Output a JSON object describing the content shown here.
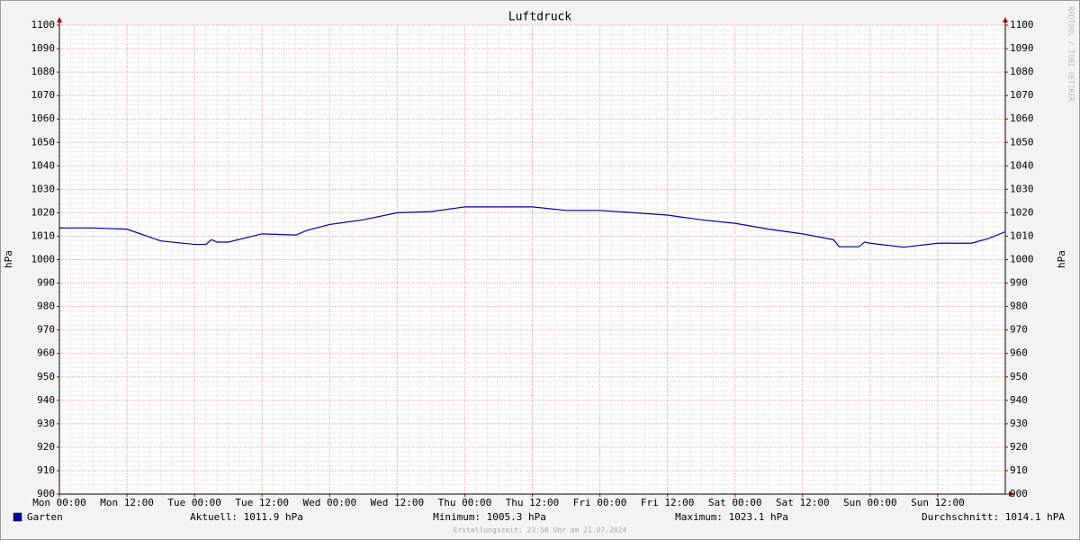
{
  "chart_data": {
    "type": "line",
    "title": "Luftdruck",
    "y_label": "hPa",
    "y2_label": "hPa",
    "watermark": "RRDTOOL / TOBI OETIKER",
    "footer": "Erstellungszeit: 23:58 Uhr am 21.07.2024",
    "x": [
      0,
      6,
      12,
      18,
      24,
      26,
      27,
      28,
      30,
      36,
      42,
      44,
      48,
      54,
      60,
      66,
      72,
      78,
      84,
      90,
      96,
      102,
      108,
      114,
      120,
      126,
      132,
      137.5,
      138.5,
      142,
      143,
      144,
      150,
      156,
      162,
      165,
      168
    ],
    "series": [
      {
        "name": "Garten",
        "color": "#0000a0",
        "values": [
          1013.5,
          1013.5,
          1013,
          1008,
          1006.5,
          1006.5,
          1008.5,
          1007.5,
          1007.5,
          1011,
          1010.5,
          1012.5,
          1015,
          1017,
          1020,
          1020.5,
          1022.5,
          1022.5,
          1022.5,
          1021,
          1021,
          1020,
          1019,
          1017,
          1015.5,
          1013,
          1011,
          1008.5,
          1005.5,
          1005.5,
          1007.5,
          1007,
          1005.3,
          1007,
          1007,
          1009,
          1011.9
        ]
      }
    ],
    "legend_stats": [
      "Aktuell: 1011.9 hPa",
      "Minimum: 1005.3 hPa",
      "Maximum: 1023.1 hPa",
      "Durchschnitt: 1014.1 hPA"
    ],
    "xlim": [
      0,
      168
    ],
    "xticks": [
      {
        "value": 0,
        "label": "Mon 00:00"
      },
      {
        "value": 12,
        "label": "Mon 12:00"
      },
      {
        "value": 24,
        "label": "Tue 00:00"
      },
      {
        "value": 36,
        "label": "Tue 12:00"
      },
      {
        "value": 48,
        "label": "Wed 00:00"
      },
      {
        "value": 60,
        "label": "Wed 12:00"
      },
      {
        "value": 72,
        "label": "Thu 00:00"
      },
      {
        "value": 84,
        "label": "Thu 12:00"
      },
      {
        "value": 96,
        "label": "Fri 00:00"
      },
      {
        "value": 108,
        "label": "Fri 12:00"
      },
      {
        "value": 120,
        "label": "Sat 00:00"
      },
      {
        "value": 132,
        "label": "Sat 12:00"
      },
      {
        "value": 144,
        "label": "Sun 00:00"
      },
      {
        "value": 156,
        "label": "Sun 12:00"
      }
    ],
    "ylim": [
      900,
      1100
    ],
    "yticks": [
      900,
      910,
      920,
      930,
      940,
      950,
      960,
      970,
      980,
      990,
      1000,
      1010,
      1020,
      1030,
      1040,
      1050,
      1060,
      1070,
      1080,
      1090,
      1100
    ],
    "grid": true,
    "minor_grid": {
      "x_step": 2,
      "y_step": 2
    }
  }
}
